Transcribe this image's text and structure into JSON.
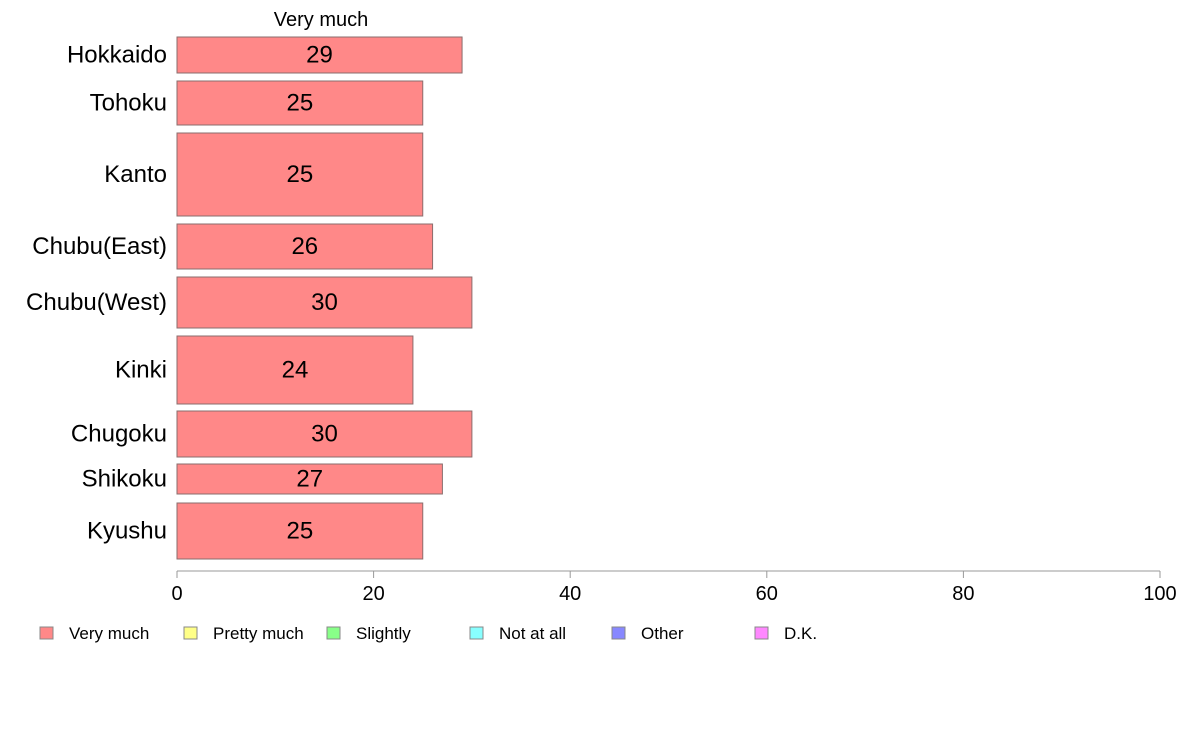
{
  "chart_data": {
    "type": "bar",
    "orientation": "horizontal",
    "column_header": "Very much",
    "categories": [
      "Hokkaido",
      "Tohoku",
      "Kanto",
      "Chubu(East)",
      "Chubu(West)",
      "Kinki",
      "Chugoku",
      "Shikoku",
      "Kyushu"
    ],
    "series": [
      {
        "name": "Very much",
        "values": [
          29,
          25,
          25,
          26,
          30,
          24,
          30,
          27,
          25
        ]
      }
    ],
    "xlim": [
      0,
      100
    ],
    "x_ticks": [
      0,
      20,
      40,
      60,
      80,
      100
    ],
    "grid": false,
    "legend_position": "bottom",
    "legend": [
      {
        "label": "Very much",
        "color": "#ff8888"
      },
      {
        "label": "Pretty much",
        "color": "#ffff88"
      },
      {
        "label": "Slightly",
        "color": "#88ff88"
      },
      {
        "label": "Not at all",
        "color": "#88ffff"
      },
      {
        "label": "Other",
        "color": "#8888ff"
      },
      {
        "label": "D.K.",
        "color": "#ff88ff"
      }
    ]
  }
}
